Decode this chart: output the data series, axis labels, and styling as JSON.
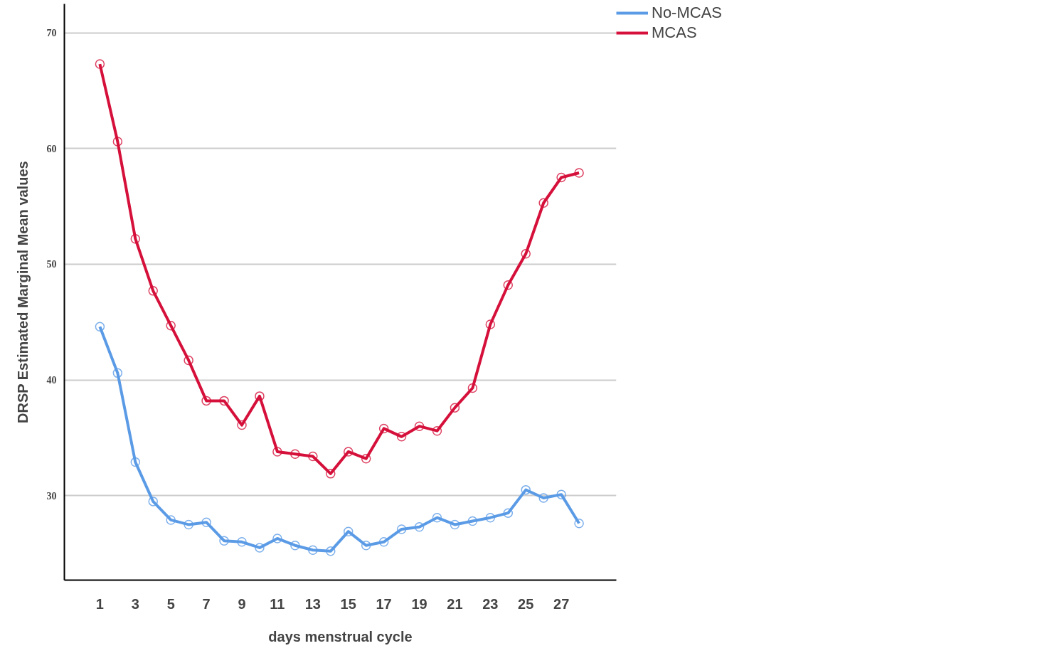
{
  "chart_data": {
    "type": "line",
    "xlabel": "days menstrual cycle",
    "ylabel": "DRSP Estimated Marginal Mean values",
    "x": [
      1,
      2,
      3,
      4,
      5,
      6,
      7,
      8,
      9,
      10,
      11,
      12,
      13,
      14,
      15,
      16,
      17,
      18,
      19,
      20,
      21,
      22,
      23,
      24,
      25,
      26,
      27,
      28
    ],
    "series": [
      {
        "name": "No-MCAS",
        "color": "#5b9be6",
        "values": [
          44.6,
          40.6,
          32.9,
          29.5,
          27.9,
          27.5,
          27.7,
          26.1,
          26.0,
          25.5,
          26.3,
          25.7,
          25.3,
          25.2,
          26.9,
          25.7,
          26.0,
          27.1,
          27.3,
          28.1,
          27.5,
          27.8,
          28.1,
          28.5,
          30.5,
          29.8,
          30.1,
          27.6
        ]
      },
      {
        "name": "MCAS",
        "color": "#d5103a",
        "values": [
          67.3,
          60.6,
          52.2,
          47.7,
          44.7,
          41.7,
          38.2,
          38.2,
          36.1,
          38.6,
          33.8,
          33.6,
          33.4,
          31.9,
          33.8,
          33.2,
          35.8,
          35.1,
          36.0,
          35.6,
          37.6,
          39.3,
          44.8,
          48.2,
          50.9,
          55.3,
          57.5,
          57.9
        ]
      }
    ],
    "xlim": [
      -1.0,
      30.1
    ],
    "ylim": [
      22.7,
      72.5
    ],
    "xticks": [
      1,
      3,
      5,
      7,
      9,
      11,
      13,
      15,
      17,
      19,
      21,
      23,
      25,
      27
    ],
    "yticks": [
      30,
      40,
      50,
      60,
      70
    ],
    "grid": "y",
    "legend": "top right",
    "marker": "circle",
    "line_style": "solid"
  }
}
